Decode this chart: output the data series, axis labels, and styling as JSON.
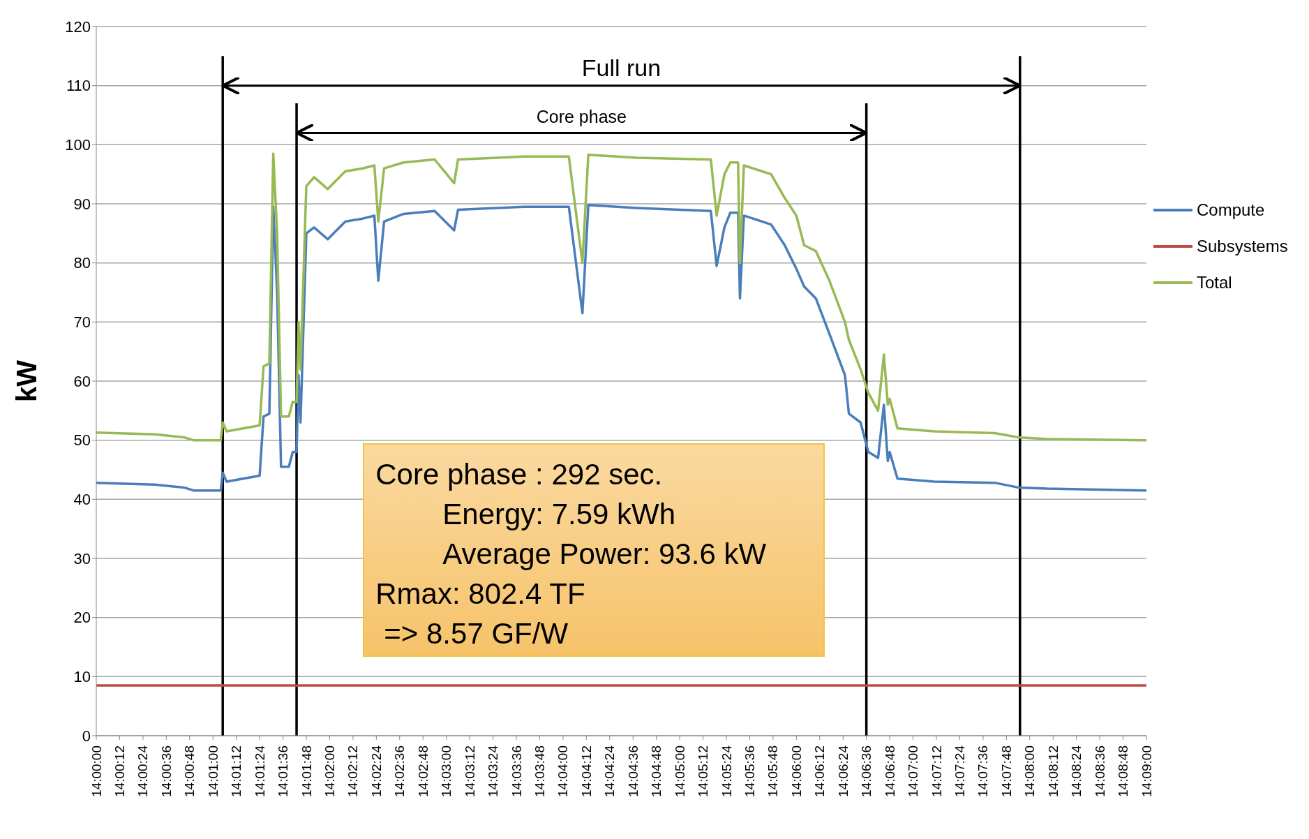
{
  "chart_data": {
    "type": "line",
    "ylabel": "kW",
    "x": [
      14,
      14.00833,
      14.0125,
      14.01389,
      14.01778,
      14.01806,
      14.01861,
      14.02333,
      14.02389,
      14.02472,
      14.02528,
      14.02583,
      14.02639,
      14.0275,
      14.02806,
      14.02861,
      14.02889,
      14.02917,
      14.03,
      14.03111,
      14.03306,
      14.03556,
      14.03806,
      14.03972,
      14.04028,
      14.04111,
      14.04389,
      14.04833,
      14.05111,
      14.05167,
      14.06111,
      14.0675,
      14.06944,
      14.07028,
      14.07722,
      14.08778,
      14.08861,
      14.08972,
      14.09056,
      14.09167,
      14.09194,
      14.0925,
      14.09639,
      14.09833,
      14.1,
      14.10111,
      14.10278,
      14.10472,
      14.10694,
      14.1075,
      14.10917,
      14.11028,
      14.11167,
      14.1125,
      14.11306,
      14.11333,
      14.11444,
      14.11972,
      14.12833,
      14.13167,
      14.13583,
      14.15
    ],
    "series": [
      {
        "name": "Compute",
        "color": "#4a7ebb",
        "values": [
          42.8,
          42.5,
          42,
          41.5,
          41.5,
          44.5,
          43,
          44,
          54,
          54.5,
          89.5,
          75,
          45.5,
          45.5,
          48,
          48,
          61,
          53,
          85,
          86,
          84,
          87,
          87.5,
          88,
          77,
          87,
          88.3,
          88.8,
          85.5,
          89,
          89.5,
          89.5,
          71.5,
          89.8,
          89.3,
          88.8,
          79.5,
          86,
          88.5,
          88.5,
          74,
          88,
          86.5,
          83,
          79,
          76,
          74,
          68,
          61,
          54.5,
          53,
          48,
          47,
          56,
          46.5,
          48,
          43.5,
          43,
          42.8,
          42,
          41.8,
          41.5
        ]
      },
      {
        "name": "Subsystems",
        "color": "#be4b48",
        "values": [
          8.5,
          8.5,
          8.5,
          8.5,
          8.5,
          8.5,
          8.5,
          8.5,
          8.5,
          8.5,
          8.5,
          8.5,
          8.5,
          8.5,
          8.5,
          8.5,
          8.5,
          8.5,
          8.5,
          8.5,
          8.5,
          8.5,
          8.5,
          8.5,
          8.5,
          8.5,
          8.5,
          8.5,
          8.5,
          8.5,
          8.5,
          8.5,
          8.5,
          8.5,
          8.5,
          8.5,
          8.5,
          8.5,
          8.5,
          8.5,
          8.5,
          8.5,
          8.5,
          8.5,
          8.5,
          8.5,
          8.5,
          8.5,
          8.5,
          8.5,
          8.5,
          8.5,
          8.5,
          8.5,
          8.5,
          8.5,
          8.5,
          8.5,
          8.5,
          8.5,
          8.5,
          8.5
        ]
      },
      {
        "name": "Total",
        "color": "#98b954",
        "values": [
          51.3,
          51,
          50.5,
          50,
          50,
          53,
          51.5,
          52.5,
          62.5,
          63,
          98.5,
          85,
          54,
          54,
          56.5,
          56.5,
          70,
          62,
          93,
          94.5,
          92.5,
          95.5,
          96,
          96.5,
          87,
          96,
          97,
          97.5,
          93.5,
          97.5,
          98,
          98,
          80,
          98.3,
          97.8,
          97.5,
          88,
          95,
          97,
          97,
          80,
          96.5,
          95,
          91,
          88,
          83,
          82,
          77,
          70,
          67,
          62,
          58,
          55,
          64.5,
          56,
          57,
          52,
          51.5,
          51.2,
          50.5,
          50.2,
          50
        ]
      }
    ],
    "xlim": [
      14,
      14.15
    ],
    "xticks": [
      {
        "value": 14,
        "label": "14:00:00"
      },
      {
        "value": 14.00333,
        "label": "14:00:12"
      },
      {
        "value": 14.00667,
        "label": "14:00:24"
      },
      {
        "value": 14.01,
        "label": "14:00:36"
      },
      {
        "value": 14.01333,
        "label": "14:00:48"
      },
      {
        "value": 14.01667,
        "label": "14:01:00"
      },
      {
        "value": 14.02,
        "label": "14:01:12"
      },
      {
        "value": 14.02333,
        "label": "14:01:24"
      },
      {
        "value": 14.02667,
        "label": "14:01:36"
      },
      {
        "value": 14.03,
        "label": "14:01:48"
      },
      {
        "value": 14.03333,
        "label": "14:02:00"
      },
      {
        "value": 14.03667,
        "label": "14:02:12"
      },
      {
        "value": 14.04,
        "label": "14:02:24"
      },
      {
        "value": 14.04333,
        "label": "14:02:36"
      },
      {
        "value": 14.04667,
        "label": "14:02:48"
      },
      {
        "value": 14.05,
        "label": "14:03:00"
      },
      {
        "value": 14.05333,
        "label": "14:03:12"
      },
      {
        "value": 14.05667,
        "label": "14:03:24"
      },
      {
        "value": 14.06,
        "label": "14:03:36"
      },
      {
        "value": 14.06333,
        "label": "14:03:48"
      },
      {
        "value": 14.06667,
        "label": "14:04:00"
      },
      {
        "value": 14.07,
        "label": "14:04:12"
      },
      {
        "value": 14.07333,
        "label": "14:04:24"
      },
      {
        "value": 14.07667,
        "label": "14:04:36"
      },
      {
        "value": 14.08,
        "label": "14:04:48"
      },
      {
        "value": 14.08333,
        "label": "14:05:00"
      },
      {
        "value": 14.08667,
        "label": "14:05:12"
      },
      {
        "value": 14.09,
        "label": "14:05:24"
      },
      {
        "value": 14.09333,
        "label": "14:05:36"
      },
      {
        "value": 14.09667,
        "label": "14:05:48"
      },
      {
        "value": 14.1,
        "label": "14:06:00"
      },
      {
        "value": 14.10333,
        "label": "14:06:12"
      },
      {
        "value": 14.10667,
        "label": "14:06:24"
      },
      {
        "value": 14.11,
        "label": "14:06:36"
      },
      {
        "value": 14.11333,
        "label": "14:06:48"
      },
      {
        "value": 14.11667,
        "label": "14:07:00"
      },
      {
        "value": 14.12,
        "label": "14:07:12"
      },
      {
        "value": 14.12333,
        "label": "14:07:24"
      },
      {
        "value": 14.12667,
        "label": "14:07:36"
      },
      {
        "value": 14.13,
        "label": "14:07:48"
      },
      {
        "value": 14.13333,
        "label": "14:08:00"
      },
      {
        "value": 14.13667,
        "label": "14:08:12"
      },
      {
        "value": 14.14,
        "label": "14:08:24"
      },
      {
        "value": 14.14333,
        "label": "14:08:36"
      },
      {
        "value": 14.14667,
        "label": "14:08:48"
      },
      {
        "value": 14.15,
        "label": "14:09:00"
      }
    ],
    "ylim": [
      0,
      120
    ],
    "yticks": [
      0,
      10,
      20,
      30,
      40,
      50,
      60,
      70,
      80,
      90,
      100,
      110,
      120
    ],
    "grid": "y",
    "legend": "right",
    "marker": "none",
    "line_style": "solid",
    "ref_lines": [
      {
        "axis": "x",
        "value": 14.01806,
        "color": "#000000"
      },
      {
        "axis": "x",
        "value": 14.02861,
        "color": "#000000"
      },
      {
        "axis": "x",
        "value": 14.11,
        "color": "#000000"
      },
      {
        "axis": "x",
        "value": 14.13194,
        "color": "#000000"
      }
    ],
    "annotations": [
      "Full run",
      "Core phase",
      "Core phase : 292 sec.",
      "Energy: 7.59 kWh",
      "Average Power: 93.6 kW",
      "Rmax: 802.4 TF",
      "=> 8.57 GF/W"
    ]
  }
}
